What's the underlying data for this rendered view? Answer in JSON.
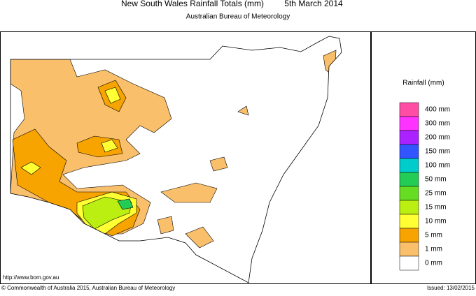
{
  "header": {
    "title": "New South Wales Rainfall Totals (mm)",
    "date": "5th March 2014",
    "subtitle": "Australian Bureau of Meteorology"
  },
  "legend": {
    "title": "Rainfall (mm)",
    "items": [
      {
        "label": "400 mm",
        "color": "#ff4da6"
      },
      {
        "label": "300 mm",
        "color": "#ff33ff"
      },
      {
        "label": "200 mm",
        "color": "#aa22ff"
      },
      {
        "label": "150 mm",
        "color": "#3355ff"
      },
      {
        "label": "100 mm",
        "color": "#00cccc"
      },
      {
        "label": "50 mm",
        "color": "#22cc55"
      },
      {
        "label": "25 mm",
        "color": "#66dd22"
      },
      {
        "label": "15 mm",
        "color": "#bbee11"
      },
      {
        "label": "10 mm",
        "color": "#ffff33"
      },
      {
        "label": "5 mm",
        "color": "#f7a300"
      },
      {
        "label": "1 mm",
        "color": "#f9bf6b"
      },
      {
        "label": "0 mm",
        "color": "#ffffff"
      }
    ]
  },
  "footer": {
    "url": "http://www.bom.gov.au",
    "copyright": "© Commonwealth of Australia 2015, Australian Bureau of Meteorology",
    "issued": "Issued: 13/02/2015"
  }
}
